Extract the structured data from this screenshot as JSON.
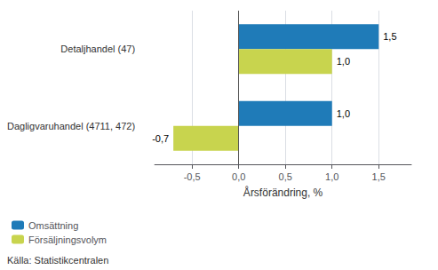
{
  "chart_data": {
    "type": "bar",
    "orientation": "horizontal",
    "categories": [
      "Dagligvaruhandel (4711, 472)",
      "Detaljhandel (47)"
    ],
    "series": [
      {
        "name": "Omsättning",
        "color": "#1f7bb8",
        "values": [
          1.0,
          1.5
        ],
        "value_labels": [
          "1,0",
          "1,5"
        ]
      },
      {
        "name": "Försäljningsvolym",
        "color": "#c8d44e",
        "values": [
          -0.7,
          1.0
        ],
        "value_labels": [
          "-0,7",
          "1,0"
        ]
      }
    ],
    "xlabel": "Årsförändring, %",
    "xlim": [
      -0.9,
      1.85
    ],
    "xticks": [
      {
        "value": -0.5,
        "label": "-0,5"
      },
      {
        "value": 0.0,
        "label": "0,0"
      },
      {
        "value": 0.5,
        "label": "0,5"
      },
      {
        "value": 1.0,
        "label": "1,0"
      },
      {
        "value": 1.5,
        "label": "1,5"
      }
    ],
    "grid": true,
    "legend": "lower left",
    "data_labels": true,
    "annotations": [
      "Källa: Statistikcentralen"
    ]
  }
}
